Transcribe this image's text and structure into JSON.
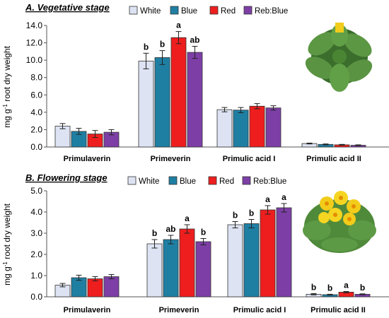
{
  "figure": {
    "ylabel_main": "mg g",
    "ylabel_sup": "-1",
    "ylabel_rest": " root dry weight"
  },
  "legend": [
    "White",
    "Blue",
    "Red",
    "Reb:Blue"
  ],
  "colors": {
    "White": "#dde3f2",
    "Blue": "#1f7fa3",
    "Red": "#ee1e1e",
    "Reb:Blue": "#7d3fa6",
    "plant_leaf": "#4f8a3a",
    "flower": "#f2cc1a"
  },
  "chart_data": [
    {
      "type": "bar",
      "title": "A. Vegetative stage",
      "categories": [
        "Primulaverin",
        "Primeverin",
        "Primulic acid I",
        "Primulic acid II"
      ],
      "ylim": [
        0,
        14
      ],
      "yticks": [
        "0.0",
        "2.0",
        "4.0",
        "6.0",
        "8.0",
        "10.0",
        "12.0",
        "14.0"
      ],
      "ytick_values": [
        0,
        2,
        4,
        6,
        8,
        10,
        12,
        14
      ],
      "legend_position": "top",
      "series": [
        {
          "name": "White",
          "values": [
            2.4,
            9.9,
            4.3,
            0.4
          ],
          "errors": [
            0.3,
            0.9,
            0.25,
            0.05
          ]
        },
        {
          "name": "Blue",
          "values": [
            1.8,
            10.3,
            4.25,
            0.3
          ],
          "errors": [
            0.35,
            0.8,
            0.3,
            0.05
          ]
        },
        {
          "name": "Red",
          "values": [
            1.5,
            12.6,
            4.7,
            0.25
          ],
          "errors": [
            0.4,
            0.7,
            0.3,
            0.05
          ]
        },
        {
          "name": "Reb:Blue",
          "values": [
            1.7,
            10.9,
            4.5,
            0.2
          ],
          "errors": [
            0.3,
            0.7,
            0.25,
            0.05
          ]
        }
      ],
      "significance": [
        [
          "",
          "",
          "",
          ""
        ],
        [
          "b",
          "b",
          "a",
          "ab"
        ],
        [
          "",
          "",
          "",
          ""
        ],
        [
          "",
          "",
          "",
          ""
        ]
      ]
    },
    {
      "type": "bar",
      "title": "B. Flowering stage",
      "categories": [
        "Primulaverin",
        "Primeverin",
        "Primulic acid I",
        "Primulic acid II"
      ],
      "ylim": [
        0,
        5
      ],
      "yticks": [
        "0.0",
        "1.0",
        "2.0",
        "3.0",
        "4.0",
        "5.0"
      ],
      "ytick_values": [
        0,
        1,
        2,
        3,
        4,
        5
      ],
      "legend_position": "top",
      "series": [
        {
          "name": "White",
          "values": [
            0.55,
            2.5,
            3.4,
            0.12
          ],
          "errors": [
            0.08,
            0.2,
            0.15,
            0.03
          ]
        },
        {
          "name": "Blue",
          "values": [
            0.9,
            2.7,
            3.45,
            0.1
          ],
          "errors": [
            0.12,
            0.2,
            0.2,
            0.02
          ]
        },
        {
          "name": "Red",
          "values": [
            0.85,
            3.2,
            4.1,
            0.22
          ],
          "errors": [
            0.1,
            0.2,
            0.2,
            0.03
          ]
        },
        {
          "name": "Reb:Blue",
          "values": [
            0.95,
            2.6,
            4.2,
            0.12
          ],
          "errors": [
            0.1,
            0.15,
            0.2,
            0.02
          ]
        }
      ],
      "significance": [
        [
          "",
          "",
          "",
          ""
        ],
        [
          "b",
          "ab",
          "a",
          "b"
        ],
        [
          "b",
          "b",
          "a",
          "a"
        ],
        [
          "b",
          "b",
          "a",
          "b"
        ]
      ]
    }
  ]
}
